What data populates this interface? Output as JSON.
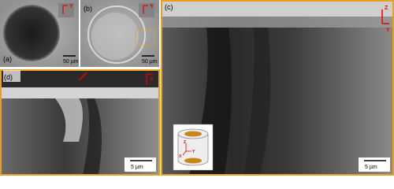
{
  "panels": [
    {
      "label": "(a)",
      "scale_bar": "50 µm",
      "axes": [
        "Y"
      ]
    },
    {
      "label": "(b)",
      "scale_bar": "50 µm",
      "axes": [
        "Y"
      ]
    },
    {
      "label": "(c)",
      "scale_bar": "5 µm",
      "axes": [
        "Z",
        "Y"
      ]
    },
    {
      "label": "(d)",
      "scale_bar": "5 µm",
      "axes": [
        "Y"
      ]
    }
  ],
  "inset": {
    "axes": [
      "Z",
      "X",
      "Y"
    ]
  }
}
